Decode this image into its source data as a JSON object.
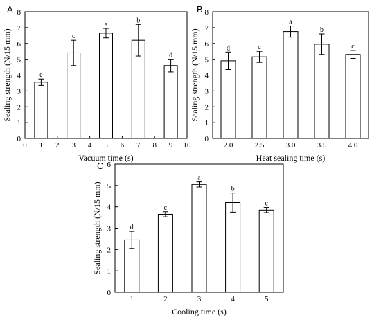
{
  "chart_data": [
    {
      "panel": "A",
      "type": "bar",
      "xlabel": "Vacuum time (s)",
      "ylabel": "Sealing strength (N/15 mm)",
      "xlim": [
        0,
        10
      ],
      "ylim": [
        0,
        8
      ],
      "xticks": [
        0,
        1,
        2,
        3,
        4,
        5,
        6,
        7,
        8,
        9,
        10
      ],
      "yticks": [
        0,
        1,
        2,
        3,
        4,
        5,
        6,
        7,
        8
      ],
      "x": [
        1,
        3,
        5,
        7,
        9
      ],
      "values": [
        3.55,
        5.4,
        6.65,
        6.2,
        4.6
      ],
      "errors": [
        0.2,
        0.8,
        0.3,
        1.0,
        0.4
      ],
      "letters": [
        "e",
        "c",
        "a",
        "b",
        "d"
      ]
    },
    {
      "panel": "B",
      "type": "bar",
      "xlabel": "Heat sealing time (s)",
      "ylabel": "Sealing strength (N/15 mm)",
      "ylim": [
        0,
        8
      ],
      "yticks": [
        0,
        1,
        2,
        3,
        4,
        5,
        6,
        7,
        8
      ],
      "categories": [
        "2.0",
        "2.5",
        "3.0",
        "3.5",
        "4.0"
      ],
      "values": [
        4.9,
        5.15,
        6.75,
        5.95,
        5.3
      ],
      "errors": [
        0.55,
        0.35,
        0.35,
        0.65,
        0.25
      ],
      "letters": [
        "d",
        "c",
        "a",
        "b",
        "c"
      ]
    },
    {
      "panel": "C",
      "type": "bar",
      "xlabel": "Cooling time (s)",
      "ylabel": "Sealing strength (N/15 mm)",
      "ylim": [
        0,
        6
      ],
      "yticks": [
        0,
        1,
        2,
        3,
        4,
        5,
        6
      ],
      "categories": [
        "1",
        "2",
        "3",
        "4",
        "5"
      ],
      "values": [
        2.45,
        3.65,
        5.05,
        4.2,
        3.85
      ],
      "errors": [
        0.4,
        0.12,
        0.12,
        0.45,
        0.12
      ],
      "letters": [
        "d",
        "c",
        "a",
        "b",
        "c"
      ]
    }
  ]
}
